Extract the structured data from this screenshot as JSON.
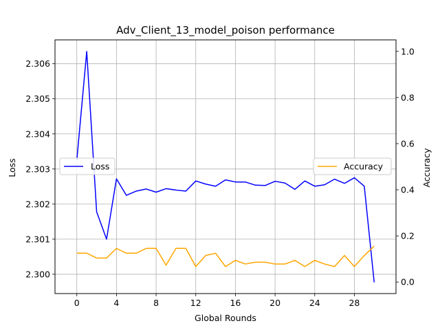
{
  "chart_data": {
    "type": "line",
    "title": "Adv_Client_13_model_poison performance",
    "xlabel": "Global Rounds",
    "ylabel_left": "Loss",
    "ylabel_right": "Accuracy",
    "grid": true,
    "x": [
      0,
      1,
      2,
      3,
      4,
      5,
      6,
      7,
      8,
      9,
      10,
      11,
      12,
      13,
      14,
      15,
      16,
      17,
      18,
      19,
      20,
      21,
      22,
      23,
      24,
      25,
      26,
      27,
      28,
      29,
      30
    ],
    "xlim": [
      -2.2,
      32.2
    ],
    "xticks": [
      0,
      4,
      8,
      12,
      16,
      20,
      24,
      28
    ],
    "left_axis": {
      "ylim": [
        2.29945,
        2.30668
      ],
      "ticks": [
        2.3,
        2.301,
        2.302,
        2.303,
        2.304,
        2.305,
        2.306
      ],
      "tick_labels": [
        "2.300",
        "2.301",
        "2.302",
        "2.303",
        "2.304",
        "2.305",
        "2.306"
      ]
    },
    "right_axis": {
      "ylim": [
        -0.05,
        1.05
      ],
      "ticks": [
        0.0,
        0.2,
        0.4,
        0.6,
        0.8,
        1.0
      ],
      "tick_labels": [
        "0.0",
        "0.2",
        "0.4",
        "0.6",
        "0.8",
        "1.0"
      ]
    },
    "series": [
      {
        "name": "Loss",
        "axis": "left",
        "color": "#0000ff",
        "legend_position": "center-left",
        "values": [
          2.30325,
          2.30635,
          2.30178,
          2.301,
          2.30272,
          2.30225,
          2.30237,
          2.30243,
          2.30234,
          2.30244,
          2.3024,
          2.30237,
          2.30266,
          2.30257,
          2.30251,
          2.30269,
          2.30263,
          2.30263,
          2.30254,
          2.30253,
          2.30265,
          2.3026,
          2.30242,
          2.30266,
          2.30251,
          2.30255,
          2.30271,
          2.30259,
          2.30275,
          2.30251,
          2.29977
        ]
      },
      {
        "name": "Accuracy",
        "axis": "right",
        "color": "#ffa500",
        "legend_position": "center-right",
        "values": [
          0.125,
          0.125,
          0.104,
          0.104,
          0.146,
          0.125,
          0.125,
          0.146,
          0.146,
          0.073,
          0.146,
          0.146,
          0.067,
          0.115,
          0.125,
          0.067,
          0.094,
          0.078,
          0.086,
          0.086,
          0.078,
          0.078,
          0.094,
          0.067,
          0.094,
          0.078,
          0.067,
          0.115,
          0.067,
          0.115,
          0.156
        ]
      }
    ]
  }
}
